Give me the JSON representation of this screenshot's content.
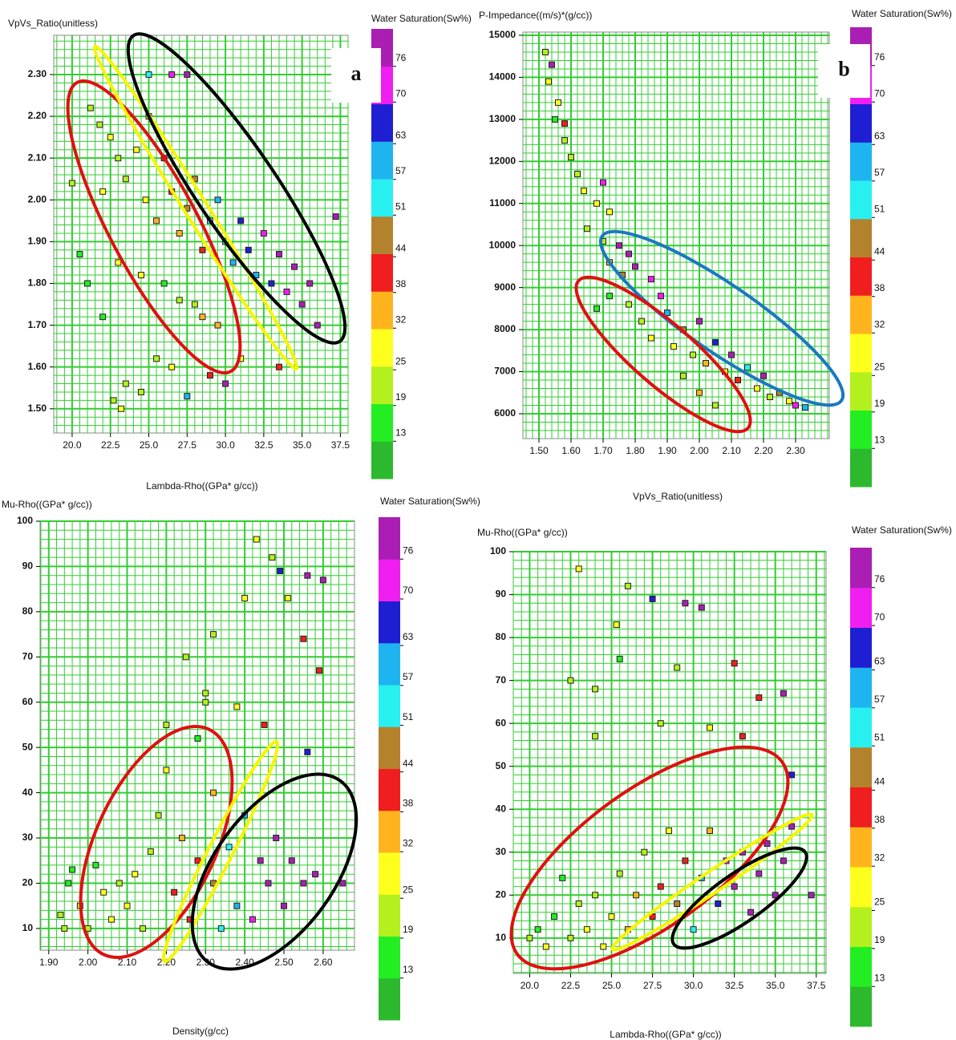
{
  "chart_data": [
    {
      "type": "scatter",
      "panel_label": "a",
      "y_label": "VpVs_Ratio(unitless)",
      "x_label": "Lambda-Rho((GPa* g/cc))",
      "xlim": [
        18.8,
        38.0
      ],
      "ylim": [
        1.442,
        2.394
      ],
      "xticks": [
        {
          "value": 20,
          "label": "20.0"
        },
        {
          "value": 22.5,
          "label": "22.5"
        },
        {
          "value": 25,
          "label": "25.0"
        },
        {
          "value": 27.5,
          "label": "27.5"
        },
        {
          "value": 30,
          "label": "30.0"
        },
        {
          "value": 32.5,
          "label": "32.5"
        },
        {
          "value": 35,
          "label": "35.0"
        },
        {
          "value": 37.5,
          "label": "37.5"
        }
      ],
      "yticks": [
        {
          "value": 1.5,
          "label": "1.50"
        },
        {
          "value": 1.6,
          "label": "1.60"
        },
        {
          "value": 1.7,
          "label": "1.70"
        },
        {
          "value": 1.8,
          "label": "1.80"
        },
        {
          "value": 1.9,
          "label": "1.90"
        },
        {
          "value": 2,
          "label": "2.00"
        },
        {
          "value": 2.1,
          "label": "2.10"
        },
        {
          "value": 2.2,
          "label": "2.20"
        },
        {
          "value": 2.3,
          "label": "2.30"
        }
      ],
      "grid": true,
      "x": [
        21.2,
        21.8,
        22.5,
        23.0,
        23.5,
        22.0,
        24.2,
        24.8,
        25.0,
        25.5,
        26.0,
        26.5,
        27.0,
        27.5,
        28.0,
        28.5,
        29.0,
        29.5,
        30.0,
        30.5,
        31.0,
        31.5,
        32.0,
        32.5,
        33.0,
        33.5,
        34.0,
        34.5,
        35.0,
        35.5,
        36.0,
        37.2,
        25.0,
        26.5,
        27.5,
        20.0,
        20.5,
        21.0,
        22.0,
        23.0,
        24.5,
        26.0,
        27.0,
        28.5,
        23.5,
        24.5,
        25.5,
        26.5,
        27.5,
        29.0,
        30.0,
        31.0,
        22.7,
        23.2,
        33.5,
        28.0,
        29.5
      ],
      "values": [
        2.22,
        2.18,
        2.15,
        2.1,
        2.05,
        2.02,
        2.12,
        2.0,
        2.2,
        1.95,
        2.1,
        2.02,
        1.92,
        1.98,
        2.05,
        1.88,
        1.95,
        2.0,
        1.9,
        1.85,
        1.95,
        1.88,
        1.82,
        1.92,
        1.8,
        1.87,
        1.78,
        1.84,
        1.75,
        1.8,
        1.7,
        1.96,
        2.3,
        2.3,
        2.3,
        2.04,
        1.87,
        1.8,
        1.72,
        1.85,
        1.82,
        1.8,
        1.76,
        1.72,
        1.56,
        1.54,
        1.62,
        1.6,
        1.53,
        1.58,
        1.56,
        1.62,
        1.52,
        1.5,
        1.6,
        1.75,
        1.7
      ],
      "sw": [
        25,
        22,
        27,
        25,
        24,
        28,
        30,
        26,
        35,
        33,
        40,
        42,
        38,
        45,
        48,
        44,
        52,
        58,
        55,
        60,
        66,
        64,
        58,
        72,
        68,
        78,
        75,
        80,
        76,
        79,
        78,
        80,
        55,
        70,
        80,
        22,
        17,
        15,
        14,
        28,
        30,
        18,
        20,
        35,
        24,
        20,
        22,
        27,
        63,
        44,
        76,
        30,
        25,
        28,
        40,
        22,
        33
      ],
      "colorbar": {
        "title": "Water Saturation(Sw%)",
        "lim": [
          6.7,
          82.3
        ],
        "ticks": [
          13,
          19,
          25,
          32,
          38,
          44,
          51,
          57,
          63,
          70,
          76
        ],
        "colors": [
          "#2db92d",
          "#22ee22",
          "#b4f01e",
          "#ffff1e",
          "#ffb41e",
          "#f01e1e",
          "#b4822d",
          "#28f0f0",
          "#1eb4f0",
          "#1e1ed2",
          "#f01ef0",
          "#aa1eb4"
        ]
      }
    },
    {
      "type": "scatter",
      "panel_label": "b",
      "y_label": "P-Impedance((m/s)*(g/cc))",
      "x_label": "VpVs_Ratio(unitless)",
      "xlim": [
        1.45,
        2.405
      ],
      "ylim": [
        5408,
        15076
      ],
      "xticks": [
        {
          "value": 1.5,
          "label": "1.50"
        },
        {
          "value": 1.6,
          "label": "1.60"
        },
        {
          "value": 1.7,
          "label": "1.70"
        },
        {
          "value": 1.8,
          "label": "1.80"
        },
        {
          "value": 1.9,
          "label": "1.90"
        },
        {
          "value": 2,
          "label": "2.00"
        },
        {
          "value": 2.1,
          "label": "2.10"
        },
        {
          "value": 2.2,
          "label": "2.20"
        },
        {
          "value": 2.3,
          "label": "2.30"
        }
      ],
      "yticks": [
        6000,
        7000,
        8000,
        9000,
        10000,
        11000,
        12000,
        13000,
        14000,
        15000
      ],
      "grid": true,
      "x": [
        1.52,
        1.54,
        1.53,
        1.56,
        1.55,
        1.58,
        1.58,
        1.6,
        1.62,
        1.64,
        1.7,
        1.68,
        1.72,
        1.65,
        1.7,
        1.75,
        1.78,
        1.72,
        1.76,
        1.8,
        1.85,
        1.68,
        1.72,
        1.78,
        1.82,
        1.88,
        1.9,
        1.85,
        1.92,
        1.95,
        2.0,
        1.98,
        2.02,
        2.05,
        2.08,
        2.1,
        2.12,
        2.15,
        2.18,
        2.2,
        2.22,
        2.25,
        2.28,
        2.3,
        2.33,
        2.05,
        2.0,
        1.95
      ],
      "values": [
        14600,
        14300,
        13900,
        13400,
        13000,
        12900,
        12500,
        12100,
        11700,
        11300,
        11500,
        11000,
        10800,
        10400,
        10100,
        10000,
        9800,
        9600,
        9300,
        9500,
        9200,
        8500,
        8800,
        8600,
        8200,
        8800,
        8400,
        7800,
        7600,
        8000,
        8200,
        7400,
        7200,
        7700,
        7000,
        7400,
        6800,
        7100,
        6600,
        6900,
        6400,
        6500,
        6300,
        6200,
        6150,
        6200,
        6500,
        6900
      ],
      "sw": [
        25,
        80,
        28,
        30,
        19,
        40,
        25,
        22,
        25,
        30,
        70,
        28,
        26,
        24,
        25,
        76,
        80,
        33,
        45,
        78,
        75,
        15,
        19,
        22,
        25,
        70,
        60,
        28,
        30,
        45,
        78,
        25,
        35,
        65,
        28,
        76,
        40,
        57,
        30,
        78,
        25,
        50,
        28,
        75,
        60,
        25,
        32,
        22
      ],
      "colorbar": {
        "title": "Water Saturation(Sw%)",
        "lim": [
          6.7,
          82.3
        ],
        "ticks": [
          13,
          19,
          25,
          32,
          38,
          44,
          51,
          57,
          63,
          70,
          76
        ],
        "colors": [
          "#2db92d",
          "#22ee22",
          "#b4f01e",
          "#ffff1e",
          "#ffb41e",
          "#f01e1e",
          "#b4822d",
          "#28f0f0",
          "#1eb4f0",
          "#1e1ed2",
          "#f01ef0",
          "#aa1eb4"
        ]
      }
    },
    {
      "type": "scatter",
      "y_label": "Mu-Rho((GPa* g/cc))",
      "x_label": "Density(g/cc)",
      "xlim": [
        1.878,
        2.68
      ],
      "ylim": [
        5.2,
        100
      ],
      "xticks": [
        {
          "value": 1.9,
          "label": "1.90"
        },
        {
          "value": 2,
          "label": "2.00"
        },
        {
          "value": 2.1,
          "label": "2.10"
        },
        {
          "value": 2.2,
          "label": "2.20"
        },
        {
          "value": 2.3,
          "label": "2.30"
        },
        {
          "value": 2.4,
          "label": "2.40"
        },
        {
          "value": 2.5,
          "label": "2.50"
        },
        {
          "value": 2.6,
          "label": "2.60"
        }
      ],
      "yticks": [
        10,
        20,
        30,
        40,
        50,
        60,
        70,
        80,
        90,
        100
      ],
      "grid": true,
      "x": [
        1.93,
        1.94,
        1.95,
        1.96,
        1.98,
        2.0,
        2.02,
        2.04,
        2.06,
        2.08,
        2.1,
        2.12,
        2.14,
        2.16,
        2.18,
        2.2,
        2.2,
        2.22,
        2.24,
        2.26,
        2.28,
        2.3,
        2.32,
        2.32,
        2.34,
        2.36,
        2.38,
        2.4,
        2.42,
        2.44,
        2.46,
        2.48,
        2.5,
        2.52,
        2.55,
        2.58,
        2.65,
        2.25,
        2.32,
        2.4,
        2.43,
        2.47,
        2.49,
        2.51,
        2.56,
        2.6,
        2.59,
        2.55,
        2.45,
        2.56,
        2.38,
        2.28,
        2.3
      ],
      "values": [
        13,
        10,
        20,
        23,
        15,
        10,
        24,
        18,
        12,
        20,
        15,
        22,
        10,
        27,
        35,
        45,
        55,
        18,
        30,
        12,
        25,
        60,
        40,
        20,
        10,
        28,
        15,
        35,
        12,
        25,
        20,
        30,
        15,
        25,
        20,
        22,
        20,
        70,
        75,
        83,
        96,
        92,
        89,
        83,
        88,
        87,
        67,
        74,
        55,
        49,
        59,
        52,
        62
      ],
      "sw": [
        22,
        25,
        14,
        15,
        22,
        25,
        19,
        26,
        30,
        25,
        28,
        30,
        24,
        25,
        22,
        28,
        20,
        40,
        38,
        44,
        42,
        25,
        32,
        50,
        57,
        55,
        60,
        63,
        70,
        76,
        78,
        80,
        76,
        80,
        78,
        80,
        80,
        25,
        22,
        30,
        28,
        25,
        65,
        30,
        76,
        80,
        44,
        44,
        44,
        65,
        28,
        19,
        25
      ],
      "colorbar": {
        "title": "Water Saturation(Sw%)",
        "lim": [
          6.7,
          82.3
        ],
        "ticks": [
          13,
          19,
          25,
          32,
          38,
          44,
          51,
          57,
          63,
          70,
          76
        ],
        "colors": [
          "#2db92d",
          "#22ee22",
          "#b4f01e",
          "#ffff1e",
          "#ffb41e",
          "#f01e1e",
          "#b4822d",
          "#28f0f0",
          "#1eb4f0",
          "#1e1ed2",
          "#f01ef0",
          "#aa1eb4"
        ]
      }
    },
    {
      "type": "scatter",
      "y_label": "Mu-Rho((GPa* g/cc))",
      "x_label": "Lambda-Rho((GPa* g/cc))",
      "xlim": [
        19.0,
        38.1
      ],
      "ylim": [
        1.75,
        100
      ],
      "xticks": [
        {
          "value": 20,
          "label": "20.0"
        },
        {
          "value": 22.5,
          "label": "22.5"
        },
        {
          "value": 25,
          "label": "25.0"
        },
        {
          "value": 27.5,
          "label": "27.5"
        },
        {
          "value": 30,
          "label": "30.0"
        },
        {
          "value": 32.5,
          "label": "32.5"
        },
        {
          "value": 35,
          "label": "35.0"
        },
        {
          "value": 37.5,
          "label": "37.5"
        }
      ],
      "yticks": [
        10,
        20,
        30,
        40,
        50,
        60,
        70,
        80,
        90,
        100
      ],
      "grid": true,
      "x": [
        20,
        20.5,
        21,
        21.5,
        22,
        22.5,
        23,
        23.5,
        24,
        24.5,
        25,
        25.5,
        26,
        26.5,
        27,
        27.5,
        28,
        28.5,
        29,
        29.5,
        30,
        30.5,
        31,
        31.5,
        32,
        32.5,
        33,
        33.5,
        34,
        34.5,
        35,
        35.5,
        36,
        37.2,
        22.5,
        23,
        24,
        25.3,
        25.5,
        26,
        27.5,
        29.5,
        29,
        30.5,
        32.5,
        34,
        35.5,
        36,
        24,
        28,
        31,
        33
      ],
      "values": [
        10,
        12,
        8,
        15,
        24,
        10,
        18,
        12,
        20,
        8,
        15,
        25,
        12,
        20,
        30,
        15,
        22,
        35,
        18,
        28,
        12,
        24,
        35,
        18,
        28,
        22,
        30,
        16,
        25,
        32,
        20,
        28,
        36,
        20,
        70,
        96,
        68,
        83,
        75,
        92,
        89,
        88,
        73,
        87,
        74,
        66,
        67,
        48,
        57,
        60,
        59,
        57
      ],
      "sw": [
        25,
        19,
        28,
        15,
        19,
        25,
        24,
        30,
        22,
        28,
        26,
        25,
        33,
        38,
        25,
        44,
        40,
        28,
        50,
        42,
        57,
        60,
        38,
        65,
        70,
        76,
        78,
        80,
        78,
        80,
        76,
        80,
        78,
        80,
        25,
        28,
        25,
        28,
        19,
        25,
        65,
        76,
        22,
        80,
        44,
        44,
        80,
        65,
        25,
        24,
        28,
        44
      ],
      "colorbar": {
        "title": "Water Saturation(Sw%)",
        "lim": [
          6.7,
          82.3
        ],
        "ticks": [
          13,
          19,
          25,
          32,
          38,
          44,
          51,
          57,
          63,
          70,
          76
        ],
        "colors": [
          "#2db92d",
          "#22ee22",
          "#b4f01e",
          "#ffff1e",
          "#ffb41e",
          "#f01e1e",
          "#b4822d",
          "#28f0f0",
          "#1eb4f0",
          "#1e1ed2",
          "#f01ef0",
          "#aa1eb4"
        ]
      }
    }
  ]
}
